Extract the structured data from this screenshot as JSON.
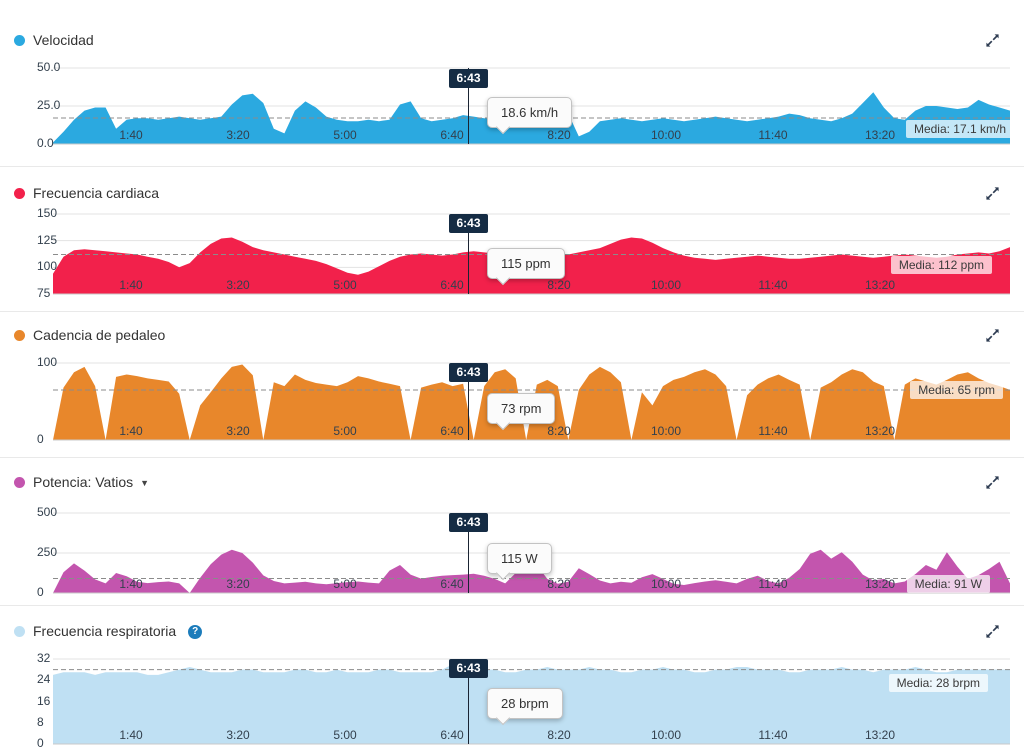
{
  "cursor": {
    "time_label": "6:43"
  },
  "x_tick_labels": [
    "1:40",
    "3:20",
    "5:00",
    "6:40",
    "8:20",
    "10:00",
    "11:40",
    "13:20"
  ],
  "icons": {
    "dropdown_glyph": "▼",
    "help_glyph": "?"
  },
  "chart_data": [
    {
      "type": "area",
      "title": "Velocidad",
      "unit": "km/h",
      "color": "#2ba9e0",
      "tooltip_value": "18.6 km/h",
      "avg_label": "Media: 17.1 km/h",
      "avg_value": 17.1,
      "ylim": [
        0,
        50
      ],
      "yticks": [
        {
          "label": "50.0",
          "value": 50
        },
        {
          "label": "25.0",
          "value": 25
        },
        {
          "label": "0.0",
          "value": 0
        }
      ],
      "x_tick_labels": [
        "1:40",
        "3:20",
        "5:00",
        "6:40",
        "8:20",
        "10:00",
        "11:40",
        "13:20"
      ],
      "values": [
        1,
        8,
        16,
        22,
        24,
        24,
        10,
        16,
        17,
        17,
        16,
        17,
        18,
        17,
        16,
        17,
        18,
        26,
        32,
        33,
        27,
        10,
        7,
        22,
        28,
        24,
        18,
        16,
        15,
        15,
        16,
        15,
        16,
        26,
        28,
        17,
        15,
        16,
        17,
        19,
        18,
        17,
        16,
        17,
        18,
        17,
        16,
        25,
        31,
        20,
        5,
        8,
        15,
        16,
        17,
        16,
        15,
        16,
        17,
        16,
        15,
        16,
        17,
        18,
        17,
        16,
        15,
        16,
        17,
        18,
        20,
        19,
        17,
        16,
        15,
        17,
        20,
        27,
        34,
        24,
        17,
        16,
        22,
        25,
        25,
        24,
        23,
        24,
        29,
        26,
        24,
        22
      ]
    },
    {
      "type": "area",
      "title": "Frecuencia cardiaca",
      "unit": "ppm",
      "color": "#f2214b",
      "tooltip_value": "115 ppm",
      "avg_label": "Media: 112 ppm",
      "avg_value": 112,
      "ylim": [
        75,
        150
      ],
      "yticks": [
        {
          "label": "150",
          "value": 150
        },
        {
          "label": "125",
          "value": 125
        },
        {
          "label": "100",
          "value": 100
        },
        {
          "label": "75",
          "value": 75
        }
      ],
      "x_tick_labels": [
        "1:40",
        "3:20",
        "5:00",
        "6:40",
        "8:20",
        "10:00",
        "11:40",
        "13:20"
      ],
      "values": [
        94,
        110,
        116,
        117,
        116,
        115,
        114,
        113,
        112,
        110,
        108,
        105,
        100,
        104,
        114,
        122,
        127,
        128,
        124,
        119,
        116,
        114,
        112,
        110,
        108,
        106,
        103,
        99,
        95,
        93,
        96,
        101,
        106,
        110,
        112,
        113,
        112,
        111,
        112,
        114,
        115,
        114,
        113,
        112,
        113,
        115,
        114,
        112,
        111,
        112,
        114,
        116,
        118,
        122,
        126,
        128,
        127,
        123,
        118,
        114,
        111,
        109,
        108,
        107,
        108,
        109,
        110,
        111,
        110,
        109,
        108,
        108,
        109,
        110,
        111,
        112,
        111,
        110,
        109,
        110,
        111,
        112,
        111,
        110,
        109,
        110,
        112,
        113,
        114,
        113,
        115,
        119
      ]
    },
    {
      "type": "area",
      "title": "Cadencia de pedaleo",
      "unit": "rpm",
      "color": "#e8872b",
      "tooltip_value": "73 rpm",
      "avg_label": "Media: 65 rpm",
      "avg_value": 65,
      "ylim": [
        0,
        100
      ],
      "yticks": [
        {
          "label": "100",
          "value": 100
        },
        {
          "label": "0",
          "value": 0
        }
      ],
      "x_tick_labels": [
        "1:40",
        "3:20",
        "5:00",
        "6:40",
        "8:20",
        "10:00",
        "11:40",
        "13:20"
      ],
      "values": [
        0,
        68,
        88,
        95,
        70,
        0,
        82,
        85,
        83,
        80,
        78,
        76,
        60,
        0,
        45,
        62,
        80,
        95,
        98,
        84,
        0,
        75,
        70,
        85,
        78,
        74,
        72,
        70,
        75,
        83,
        80,
        76,
        73,
        70,
        0,
        68,
        72,
        75,
        70,
        73,
        0,
        70,
        88,
        92,
        80,
        0,
        72,
        78,
        70,
        0,
        65,
        85,
        95,
        88,
        75,
        0,
        62,
        45,
        70,
        78,
        82,
        88,
        92,
        85,
        70,
        0,
        58,
        72,
        80,
        85,
        78,
        72,
        0,
        68,
        75,
        85,
        92,
        88,
        76,
        70,
        0,
        72,
        80,
        76,
        72,
        78,
        85,
        88,
        80,
        74,
        70,
        65
      ]
    },
    {
      "type": "area",
      "title": "Potencia: Vatios",
      "unit": "W",
      "has_dropdown": true,
      "color": "#c355ae",
      "tooltip_value": "115 W",
      "avg_label": "Media: 91 W",
      "avg_value": 91,
      "ylim": [
        0,
        500
      ],
      "yticks": [
        {
          "label": "500",
          "value": 500
        },
        {
          "label": "250",
          "value": 250
        },
        {
          "label": "0",
          "value": 0
        }
      ],
      "x_tick_labels": [
        "1:40",
        "3:20",
        "5:00",
        "6:40",
        "8:20",
        "10:00",
        "11:40",
        "13:20"
      ],
      "values": [
        0,
        130,
        185,
        140,
        85,
        60,
        125,
        105,
        70,
        62,
        68,
        72,
        60,
        0,
        95,
        180,
        240,
        270,
        250,
        190,
        110,
        75,
        60,
        65,
        70,
        60,
        55,
        62,
        68,
        72,
        65,
        60,
        140,
        175,
        115,
        90,
        100,
        108,
        112,
        115,
        120,
        108,
        88,
        60,
        125,
        195,
        175,
        88,
        58,
        70,
        155,
        118,
        78,
        60,
        70,
        64,
        98,
        118,
        88,
        58,
        50,
        62,
        72,
        80,
        70,
        60,
        88,
        108,
        75,
        60,
        95,
        150,
        245,
        270,
        215,
        255,
        195,
        115,
        78,
        88,
        60,
        72,
        118,
        175,
        145,
        255,
        165,
        88,
        112,
        150,
        195,
        60
      ]
    },
    {
      "type": "area",
      "title": "Frecuencia respiratoria",
      "unit": "brpm",
      "has_help": true,
      "color": "#bfe0f3",
      "tooltip_value": "28 brpm",
      "avg_label": "Media: 28 brpm",
      "avg_value": 28,
      "ylim": [
        0,
        32
      ],
      "yticks": [
        {
          "label": "32",
          "value": 32
        },
        {
          "label": "24",
          "value": 24
        },
        {
          "label": "16",
          "value": 16
        },
        {
          "label": "8",
          "value": 8
        },
        {
          "label": "0",
          "value": 0
        }
      ],
      "x_tick_labels": [
        "1:40",
        "3:20",
        "5:00",
        "6:40",
        "8:20",
        "10:00",
        "11:40",
        "13:20"
      ],
      "values": [
        26,
        27,
        27,
        27,
        26,
        27,
        27,
        27,
        27,
        26,
        26,
        27,
        28,
        29,
        28,
        27,
        27,
        27,
        28,
        28,
        27,
        27,
        27,
        28,
        28,
        27,
        27,
        28,
        27,
        27,
        27,
        28,
        28,
        27,
        27,
        27,
        27,
        28,
        30,
        29,
        28,
        28,
        28,
        27,
        27,
        28,
        28,
        29,
        28,
        28,
        28,
        29,
        28,
        28,
        27,
        27,
        28,
        28,
        29,
        28,
        28,
        27,
        27,
        28,
        28,
        29,
        29,
        28,
        28,
        28,
        27,
        27,
        28,
        28,
        28,
        29,
        28,
        28,
        27,
        28,
        28,
        28,
        29,
        28,
        27,
        27,
        28,
        28,
        28,
        28,
        28,
        28
      ]
    }
  ]
}
